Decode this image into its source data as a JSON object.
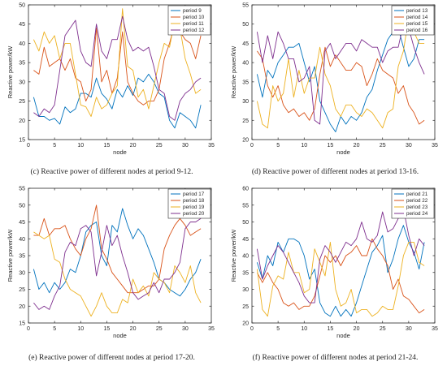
{
  "colors": [
    "#0072BD",
    "#D95319",
    "#EDB120",
    "#7E2F8E"
  ],
  "chart_data": [
    {
      "type": "line",
      "caption": "(c)  Reactive power of different nodes at period 9-12.",
      "xlabel": "node",
      "ylabel": "Reactive power/kW",
      "xlim": [
        0,
        35
      ],
      "ylim": [
        15,
        50
      ],
      "xticks": [
        0,
        5,
        10,
        15,
        20,
        25,
        30,
        35
      ],
      "yticks": [
        15,
        20,
        25,
        30,
        35,
        40,
        45,
        50
      ],
      "legend": "top-right",
      "x": [
        1,
        2,
        3,
        4,
        5,
        6,
        7,
        8,
        9,
        10,
        11,
        12,
        13,
        14,
        15,
        16,
        17,
        18,
        19,
        20,
        21,
        22,
        23,
        24,
        25,
        26,
        27,
        28,
        29,
        30,
        31,
        32,
        33
      ],
      "series": [
        {
          "name": "period 9",
          "values": [
            26,
            21,
            21,
            20,
            20.5,
            19,
            23.5,
            22,
            23,
            27,
            27,
            26,
            31,
            27,
            25.5,
            23,
            28,
            26,
            29,
            26.5,
            31,
            30,
            32,
            30,
            27,
            26,
            20,
            18,
            22,
            21,
            20,
            18,
            24
          ]
        },
        {
          "name": "period 10",
          "values": [
            33,
            32,
            39,
            34,
            35,
            36,
            33,
            36,
            31,
            30,
            25,
            28,
            44,
            30,
            33,
            27,
            31,
            43,
            30,
            27,
            25,
            24,
            25,
            25,
            28,
            36,
            40,
            45,
            43,
            41,
            40,
            36,
            42
          ]
        },
        {
          "name": "period 11",
          "values": [
            41,
            38,
            43,
            40,
            42,
            36,
            40,
            40,
            32,
            24,
            23.5,
            21,
            26,
            23,
            24,
            27,
            29,
            49,
            34,
            33,
            26,
            28,
            23,
            29,
            35,
            40,
            39,
            46,
            44,
            36,
            32,
            27,
            28
          ]
        },
        {
          "name": "period 12",
          "values": [
            22,
            21,
            23,
            22,
            24,
            33,
            42,
            44,
            46,
            38,
            35,
            34,
            45,
            38,
            36,
            41,
            41,
            47,
            41,
            38,
            39,
            38,
            39,
            34,
            28,
            27,
            21,
            20,
            25,
            27,
            28,
            30,
            31
          ]
        }
      ]
    },
    {
      "type": "line",
      "caption": "(d)  Reactive power of different nodes at period 13-16.",
      "xlabel": "node",
      "ylabel": "Reactive power/kW",
      "xlim": [
        0,
        35
      ],
      "ylim": [
        20,
        55
      ],
      "xticks": [
        0,
        5,
        10,
        15,
        20,
        25,
        30,
        35
      ],
      "yticks": [
        20,
        25,
        30,
        35,
        40,
        45,
        50,
        55
      ],
      "legend": "top-right",
      "x": [
        1,
        2,
        3,
        4,
        5,
        6,
        7,
        8,
        9,
        10,
        11,
        12,
        13,
        14,
        15,
        16,
        17,
        18,
        19,
        20,
        21,
        22,
        23,
        24,
        25,
        26,
        27,
        28,
        29,
        30,
        31,
        32,
        33
      ],
      "series": [
        {
          "name": "period 13",
          "values": [
            37,
            31,
            38,
            36,
            40,
            42,
            44,
            44,
            45,
            40,
            35,
            39,
            30,
            27,
            24,
            22,
            26,
            24,
            26,
            25,
            27,
            31,
            33,
            38,
            42,
            46,
            48,
            49,
            44,
            39,
            41,
            46,
            46
          ]
        },
        {
          "name": "period 14",
          "values": [
            43,
            41,
            34,
            31,
            34,
            29,
            27,
            28,
            26,
            27,
            25,
            28,
            37,
            44,
            39,
            42,
            40,
            38,
            38,
            40,
            39,
            34,
            37,
            41,
            38,
            37,
            36,
            32,
            34,
            29,
            27,
            24,
            25
          ]
        },
        {
          "name": "period 15",
          "values": [
            30,
            24,
            23,
            34,
            30,
            32,
            41,
            31,
            38,
            32,
            36,
            36,
            44,
            37,
            34,
            28,
            26,
            29,
            29,
            27,
            26,
            28,
            27,
            25,
            23,
            27,
            28,
            39,
            43,
            52,
            48,
            45,
            45
          ]
        },
        {
          "name": "period 16",
          "values": [
            48,
            40,
            47,
            41,
            48,
            45,
            41,
            41,
            35,
            36,
            39,
            25,
            24,
            43,
            45,
            41,
            43,
            45,
            45,
            43,
            46,
            45,
            44,
            44,
            40,
            43,
            44,
            44,
            50,
            49,
            44,
            40,
            37
          ]
        }
      ]
    },
    {
      "type": "line",
      "caption": "(e)  Reactive power of different nodes at period 17-20.",
      "xlabel": "node",
      "ylabel": "Reactive power/kW",
      "xlim": [
        0,
        35
      ],
      "ylim": [
        15,
        55
      ],
      "xticks": [
        0,
        5,
        10,
        15,
        20,
        25,
        30,
        35
      ],
      "yticks": [
        15,
        20,
        25,
        30,
        35,
        40,
        45,
        50,
        55
      ],
      "legend": "top-right",
      "x": [
        1,
        2,
        3,
        4,
        5,
        6,
        7,
        8,
        9,
        10,
        11,
        12,
        13,
        14,
        15,
        16,
        17,
        18,
        19,
        20,
        21,
        22,
        23,
        24,
        25,
        26,
        27,
        28,
        29,
        30,
        31,
        32,
        33
      ],
      "series": [
        {
          "name": "period 17",
          "values": [
            31,
            25,
            27,
            24,
            27,
            25,
            27,
            31,
            30,
            35,
            42,
            44,
            45,
            35,
            32,
            44,
            42,
            49,
            44,
            40,
            43,
            41,
            37,
            33,
            28,
            27,
            25,
            24,
            23,
            25,
            28,
            30,
            34
          ]
        },
        {
          "name": "period 18",
          "values": [
            41,
            41,
            46,
            41,
            43,
            43,
            44,
            40,
            37,
            35,
            40,
            43,
            50,
            37,
            34,
            30,
            28,
            26,
            24,
            24,
            24,
            25,
            26,
            26,
            28,
            37,
            41,
            44,
            46,
            44,
            41,
            42,
            43
          ]
        },
        {
          "name": "period 19",
          "values": [
            42,
            41,
            40,
            41,
            34,
            33,
            28,
            25,
            24,
            23,
            20,
            17,
            20,
            24,
            20,
            18,
            18,
            22,
            21,
            28,
            24,
            26,
            23,
            30,
            28,
            27,
            24,
            32,
            30,
            27,
            32,
            24,
            21
          ]
        },
        {
          "name": "period 20",
          "values": [
            21,
            19,
            20,
            19,
            23,
            26,
            36,
            39,
            38,
            43,
            44,
            42,
            29,
            36,
            44,
            38,
            41,
            35,
            30,
            24,
            22,
            23,
            24,
            27,
            24,
            28,
            28,
            30,
            33,
            43,
            45,
            45,
            46
          ]
        }
      ]
    },
    {
      "type": "line",
      "caption": "(f)  Reactive power of different nodes at period 21-24.",
      "xlabel": "node",
      "ylabel": "Reactive power/kW",
      "xlim": [
        0,
        35
      ],
      "ylim": [
        20,
        60
      ],
      "xticks": [
        0,
        5,
        10,
        15,
        20,
        25,
        30,
        35
      ],
      "yticks": [
        20,
        25,
        30,
        35,
        40,
        45,
        50,
        55,
        60
      ],
      "legend": "top-right",
      "x": [
        1,
        2,
        3,
        4,
        5,
        6,
        7,
        8,
        9,
        10,
        11,
        12,
        13,
        14,
        15,
        16,
        17,
        18,
        19,
        20,
        21,
        22,
        23,
        24,
        25,
        26,
        27,
        28,
        29,
        30,
        31,
        32,
        33
      ],
      "series": [
        {
          "name": "period 21",
          "values": [
            38,
            33,
            40,
            37,
            44,
            41,
            45,
            45,
            44,
            40,
            33,
            36,
            26,
            23,
            22,
            25,
            22,
            24,
            22,
            26,
            31,
            36,
            41,
            43,
            46,
            35,
            39,
            45,
            49,
            44,
            41,
            36,
            44
          ]
        },
        {
          "name": "period 22",
          "values": [
            35,
            32,
            35,
            32,
            30,
            26,
            25,
            26,
            24,
            25,
            25,
            28,
            34,
            40,
            38,
            40,
            37,
            40,
            41,
            43,
            40,
            40,
            45,
            42,
            40,
            37,
            30,
            33,
            28,
            27,
            25,
            23,
            24
          ]
        },
        {
          "name": "period 23",
          "values": [
            36,
            24,
            22,
            31,
            34,
            33,
            41,
            35,
            35,
            29,
            30,
            42,
            38,
            34,
            44,
            30,
            25,
            26,
            30,
            23,
            24,
            24,
            22,
            23,
            25,
            24,
            24,
            31,
            40,
            44,
            44,
            38,
            37
          ]
        },
        {
          "name": "period 24",
          "values": [
            42,
            33,
            37,
            40,
            43,
            41,
            38,
            35,
            32,
            28,
            26,
            26,
            39,
            43,
            41,
            38,
            41,
            44,
            43,
            45,
            50,
            45,
            44,
            46,
            53,
            47,
            48,
            51,
            54,
            46,
            40,
            45,
            43
          ]
        }
      ]
    }
  ]
}
